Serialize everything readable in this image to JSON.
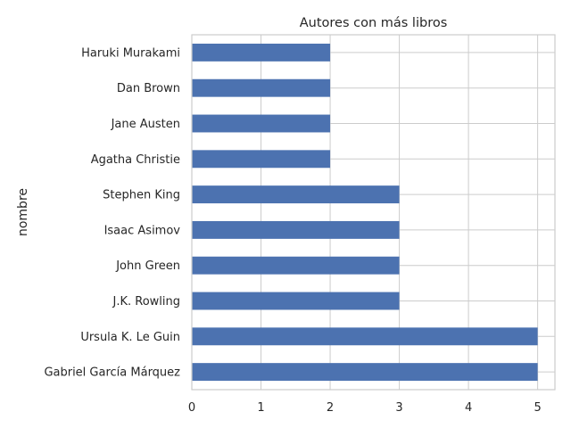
{
  "chart_data": {
    "type": "bar",
    "orientation": "horizontal",
    "title": "Autores con más libros",
    "xlabel": "",
    "ylabel": "nombre",
    "categories": [
      "Gabriel García Márquez",
      "Ursula K. Le Guin",
      "J.K. Rowling",
      "John Green",
      "Isaac Asimov",
      "Stephen King",
      "Agatha Christie",
      "Jane Austen",
      "Dan Brown",
      "Haruki Murakami"
    ],
    "values": [
      5,
      5,
      3,
      3,
      3,
      3,
      2,
      2,
      2,
      2
    ],
    "xlim": [
      0,
      5.25
    ],
    "xticks": [
      "0",
      "1",
      "2",
      "3",
      "4",
      "5"
    ],
    "grid": true,
    "legend": "none",
    "bar_color": "#4c72b0",
    "grid_color": "#cccccc"
  }
}
